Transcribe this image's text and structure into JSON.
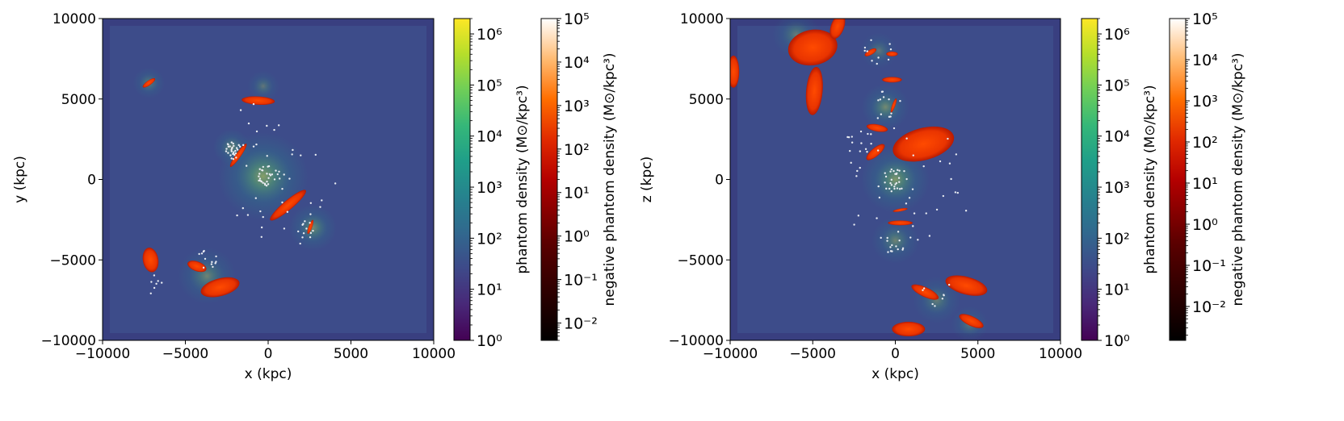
{
  "chart_data": [
    {
      "type": "heatmap",
      "panel": "x-y projection",
      "xlabel": "x (kpc)",
      "ylabel": "y (kpc)",
      "xlim": [
        -10000,
        10000
      ],
      "ylim": [
        -10000,
        10000
      ],
      "xticks": [
        -10000,
        -5000,
        0,
        5000,
        10000
      ],
      "yticks": [
        -10000,
        -5000,
        0,
        5000,
        10000
      ],
      "xtick_labels": [
        "−10000",
        "−5000",
        "0",
        "5000",
        "10000"
      ],
      "ytick_labels": [
        "−10000",
        "−5000",
        "0",
        "5000",
        "10000"
      ],
      "grid": false,
      "colormaps": [
        "viridis",
        "gist_heat"
      ],
      "colorbars": [
        {
          "label": "phantom density (M⊙/kpc³)",
          "scale": "log",
          "range": [
            1,
            2000000
          ],
          "cmap": "viridis",
          "ticks": [
            {
              "v": 1,
              "label": "10⁰"
            },
            {
              "v": 10,
              "label": "10¹"
            },
            {
              "v": 100,
              "label": "10²"
            },
            {
              "v": 1000,
              "label": "10³"
            },
            {
              "v": 10000,
              "label": "10⁴"
            },
            {
              "v": 100000,
              "label": "10⁵"
            },
            {
              "v": 1000000,
              "label": "10⁶"
            }
          ]
        },
        {
          "label": "negative phantom density (M⊙/kpc³)",
          "scale": "log",
          "range": [
            0.004,
            100000
          ],
          "cmap": "gist_heat",
          "ticks": [
            {
              "v": 0.01,
              "label": "10⁻²"
            },
            {
              "v": 0.1,
              "label": "10⁻¹"
            },
            {
              "v": 1,
              "label": "10⁰"
            },
            {
              "v": 10,
              "label": "10¹"
            },
            {
              "v": 100,
              "label": "10²"
            },
            {
              "v": 1000,
              "label": "10³"
            },
            {
              "v": 10000,
              "label": "10⁴"
            },
            {
              "v": 100000,
              "label": "10⁵"
            }
          ]
        }
      ],
      "glow_sources": [
        {
          "x": -300,
          "y": 200,
          "sigma": 1700,
          "amp": 0.6
        },
        {
          "x": -2200,
          "y": 2000,
          "sigma": 700,
          "amp": 0.4
        },
        {
          "x": 2700,
          "y": -3000,
          "sigma": 900,
          "amp": 0.45
        },
        {
          "x": -3700,
          "y": -6000,
          "sigma": 1100,
          "amp": 0.4
        },
        {
          "x": -7200,
          "y": 6000,
          "sigma": 600,
          "amp": 0.35
        },
        {
          "x": -300,
          "y": 5800,
          "sigma": 600,
          "amp": 0.3
        }
      ],
      "negative_regions": [
        {
          "x": -7200,
          "y": 6000,
          "rx": 450,
          "ry": 150,
          "rot": -35
        },
        {
          "x": -600,
          "y": 4900,
          "rx": 1000,
          "ry": 260,
          "rot": 3
        },
        {
          "x": -1800,
          "y": 1500,
          "rx": 850,
          "ry": 160,
          "rot": -55
        },
        {
          "x": 1200,
          "y": -1600,
          "rx": 1400,
          "ry": 300,
          "rot": -40
        },
        {
          "x": 2550,
          "y": -2950,
          "rx": 450,
          "ry": 110,
          "rot": -70
        },
        {
          "x": -7100,
          "y": -5000,
          "rx": 750,
          "ry": 480,
          "rot": 80
        },
        {
          "x": -4300,
          "y": -5400,
          "rx": 600,
          "ry": 300,
          "rot": 20
        },
        {
          "x": -2900,
          "y": -6700,
          "rx": 1200,
          "ry": 550,
          "rot": -15
        }
      ],
      "star_clusters": [
        {
          "x": -2100,
          "y": 1800,
          "n": 28,
          "spread": 550
        },
        {
          "x": 0,
          "y": 200,
          "n": 26,
          "spread": 750
        },
        {
          "x": -700,
          "y": 3200,
          "n": 10,
          "spread": 1500
        },
        {
          "x": 2300,
          "y": -3000,
          "n": 10,
          "spread": 700
        },
        {
          "x": -3700,
          "y": -5000,
          "n": 12,
          "spread": 700
        },
        {
          "x": -7000,
          "y": -6500,
          "n": 7,
          "spread": 600
        },
        {
          "x": 1000,
          "y": -1000,
          "n": 30,
          "spread": 3200
        }
      ]
    },
    {
      "type": "heatmap",
      "panel": "x-z projection",
      "xlabel": "x (kpc)",
      "ylabel": "z (kpc)",
      "xlim": [
        -10000,
        10000
      ],
      "ylim": [
        -10000,
        10000
      ],
      "xticks": [
        -10000,
        -5000,
        0,
        5000,
        10000
      ],
      "yticks": [
        -10000,
        -5000,
        0,
        5000,
        10000
      ],
      "xtick_labels": [
        "−10000",
        "−5000",
        "0",
        "5000",
        "10000"
      ],
      "ytick_labels": [
        "−10000",
        "−5000",
        "0",
        "5000",
        "10000"
      ],
      "grid": false,
      "colormaps": [
        "viridis",
        "gist_heat"
      ],
      "colorbars": [
        {
          "label": "phantom density (M⊙/kpc³)",
          "scale": "log",
          "range": [
            1,
            2000000
          ],
          "cmap": "viridis",
          "ticks": [
            {
              "v": 1,
              "label": "10⁰"
            },
            {
              "v": 10,
              "label": "10¹"
            },
            {
              "v": 100,
              "label": "10²"
            },
            {
              "v": 1000,
              "label": "10³"
            },
            {
              "v": 10000,
              "label": "10⁴"
            },
            {
              "v": 100000,
              "label": "10⁵"
            },
            {
              "v": 1000000,
              "label": "10⁶"
            }
          ]
        },
        {
          "label": "negative phantom density (M⊙/kpc³)",
          "scale": "log",
          "range": [
            0.0015,
            100000
          ],
          "cmap": "gist_heat",
          "ticks": [
            {
              "v": 0.01,
              "label": "10⁻²"
            },
            {
              "v": 0.1,
              "label": "10⁻¹"
            },
            {
              "v": 1,
              "label": "10⁰"
            },
            {
              "v": 10,
              "label": "10¹"
            },
            {
              "v": 100,
              "label": "10²"
            },
            {
              "v": 1000,
              "label": "10³"
            },
            {
              "v": 10000,
              "label": "10⁴"
            },
            {
              "v": 100000,
              "label": "10⁵"
            }
          ]
        }
      ],
      "glow_sources": [
        {
          "x": 0,
          "y": 0,
          "sigma": 1300,
          "amp": 0.55
        },
        {
          "x": -600,
          "y": 4500,
          "sigma": 900,
          "amp": 0.45
        },
        {
          "x": 0,
          "y": -3800,
          "sigma": 900,
          "amp": 0.4
        },
        {
          "x": 2500,
          "y": -7500,
          "sigma": 900,
          "amp": 0.35
        },
        {
          "x": -6000,
          "y": 9000,
          "sigma": 900,
          "amp": 0.35
        },
        {
          "x": -1000,
          "y": 8000,
          "sigma": 700,
          "amp": 0.3
        },
        {
          "x": 4500,
          "y": -9000,
          "sigma": 700,
          "amp": 0.3
        }
      ],
      "negative_regions": [
        {
          "x": -9800,
          "y": 6700,
          "rx": 350,
          "ry": 1000,
          "rot": 0
        },
        {
          "x": -5000,
          "y": 8200,
          "rx": 1500,
          "ry": 1100,
          "rot": -10
        },
        {
          "x": -4900,
          "y": 5500,
          "rx": 500,
          "ry": 1500,
          "rot": 5
        },
        {
          "x": -3500,
          "y": 9500,
          "rx": 400,
          "ry": 800,
          "rot": 20
        },
        {
          "x": -1500,
          "y": 7900,
          "rx": 400,
          "ry": 160,
          "rot": -30
        },
        {
          "x": -200,
          "y": 7800,
          "rx": 350,
          "ry": 150,
          "rot": 0
        },
        {
          "x": -200,
          "y": 6200,
          "rx": 600,
          "ry": 170,
          "rot": 0
        },
        {
          "x": -100,
          "y": 4600,
          "rx": 450,
          "ry": 100,
          "rot": -70
        },
        {
          "x": -1100,
          "y": 3200,
          "rx": 650,
          "ry": 220,
          "rot": 10
        },
        {
          "x": -1200,
          "y": 1700,
          "rx": 700,
          "ry": 260,
          "rot": -40
        },
        {
          "x": 1700,
          "y": 2200,
          "rx": 1900,
          "ry": 1000,
          "rot": -15
        },
        {
          "x": 300,
          "y": -1900,
          "rx": 450,
          "ry": 90,
          "rot": -10
        },
        {
          "x": 300,
          "y": -2700,
          "rx": 750,
          "ry": 150,
          "rot": 0
        },
        {
          "x": 1800,
          "y": -7000,
          "rx": 900,
          "ry": 300,
          "rot": 25
        },
        {
          "x": 4300,
          "y": -6600,
          "rx": 1300,
          "ry": 550,
          "rot": 15
        },
        {
          "x": 4600,
          "y": -8800,
          "rx": 800,
          "ry": 300,
          "rot": 25
        },
        {
          "x": 800,
          "y": -9300,
          "rx": 1000,
          "ry": 450,
          "rot": 0
        }
      ],
      "star_clusters": [
        {
          "x": 0,
          "y": 0,
          "n": 24,
          "spread": 800
        },
        {
          "x": -500,
          "y": 4500,
          "n": 12,
          "spread": 1000
        },
        {
          "x": -1000,
          "y": 8000,
          "n": 10,
          "spread": 900
        },
        {
          "x": -2000,
          "y": 2000,
          "n": 14,
          "spread": 1300
        },
        {
          "x": 0,
          "y": -4000,
          "n": 10,
          "spread": 800
        },
        {
          "x": 2500,
          "y": -7000,
          "n": 8,
          "spread": 900
        },
        {
          "x": 1000,
          "y": 0,
          "n": 40,
          "spread": 4500
        }
      ]
    }
  ]
}
